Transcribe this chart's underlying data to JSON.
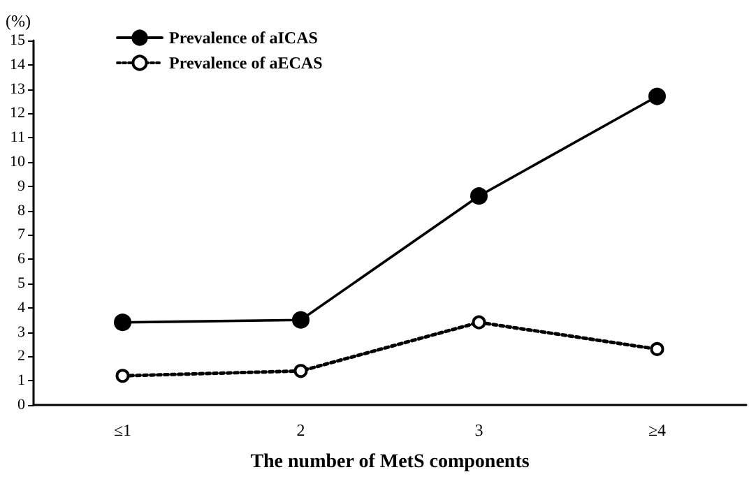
{
  "chart_data": {
    "type": "line",
    "xlabel": "The number of MetS components",
    "ylabel": "(%)",
    "categories": [
      "≤1",
      "2",
      "3",
      "≥4"
    ],
    "series": [
      {
        "name": "Prevalence of aICAS",
        "color": "#000000",
        "values": [
          3.4,
          3.5,
          8.6,
          12.7
        ],
        "marker": "circle",
        "line_style": "solid"
      },
      {
        "name": "Prevalence of aECAS",
        "color": "#000000",
        "values": [
          1.2,
          1.4,
          3.4,
          2.3
        ],
        "marker": "emptyCircle",
        "line_style": "dotted"
      }
    ],
    "ylim": [
      0,
      15
    ],
    "yticks": [
      0,
      1,
      2,
      3,
      4,
      5,
      6,
      7,
      8,
      9,
      10,
      11,
      12,
      13,
      14,
      15
    ],
    "grid": false,
    "legend": "top left"
  }
}
